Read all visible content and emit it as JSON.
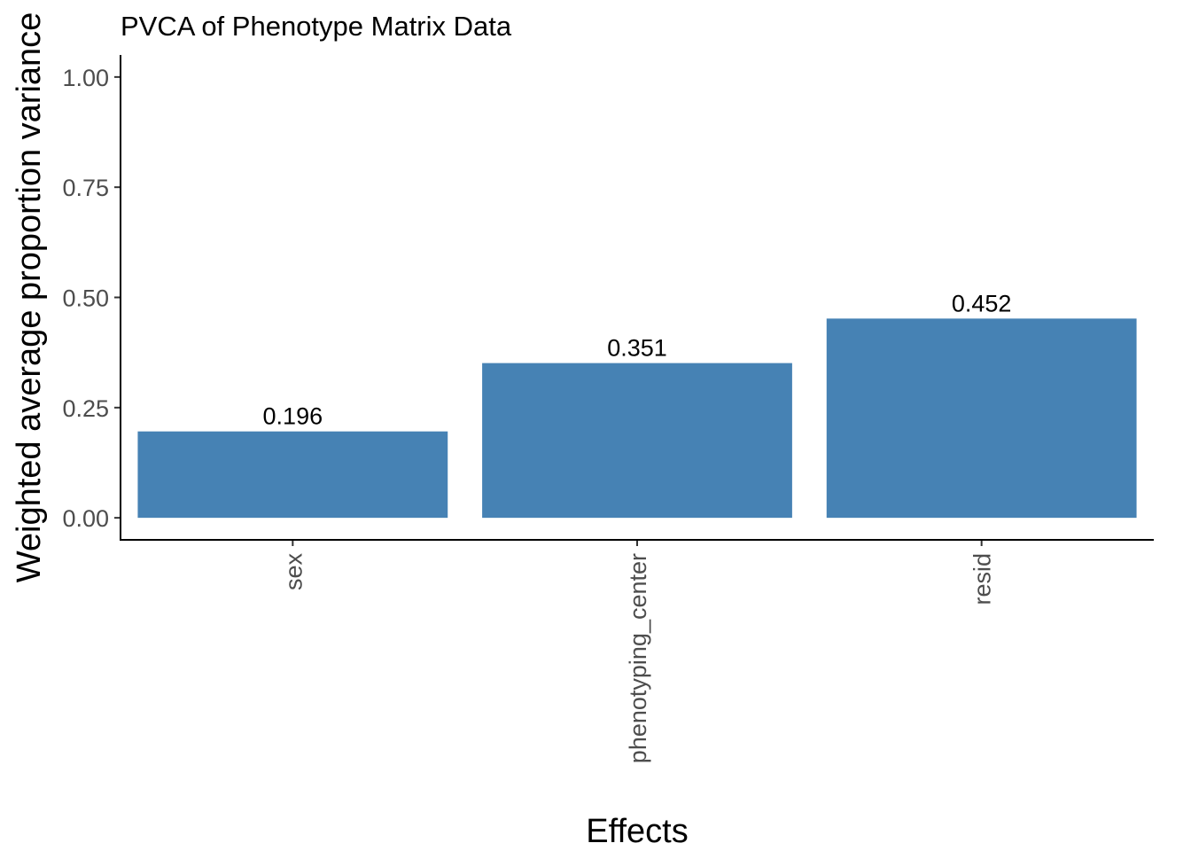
{
  "chart_data": {
    "type": "bar",
    "title": "PVCA of Phenotype Matrix Data",
    "xlabel": "Effects",
    "ylabel": "Weighted average proportion variance",
    "categories": [
      "sex",
      "phenotyping_center",
      "resid"
    ],
    "values": [
      0.196,
      0.351,
      0.452
    ],
    "data_labels": [
      "0.196",
      "0.351",
      "0.452"
    ],
    "ylim": [
      -0.05,
      1.05
    ],
    "yticks": [
      0,
      0.25,
      0.5,
      0.75,
      1.0
    ],
    "ytick_labels": [
      "0.00",
      "0.25",
      "0.50",
      "0.75",
      "1.00"
    ],
    "grid": false,
    "legend": "none",
    "bar_color": "#4682b4"
  }
}
